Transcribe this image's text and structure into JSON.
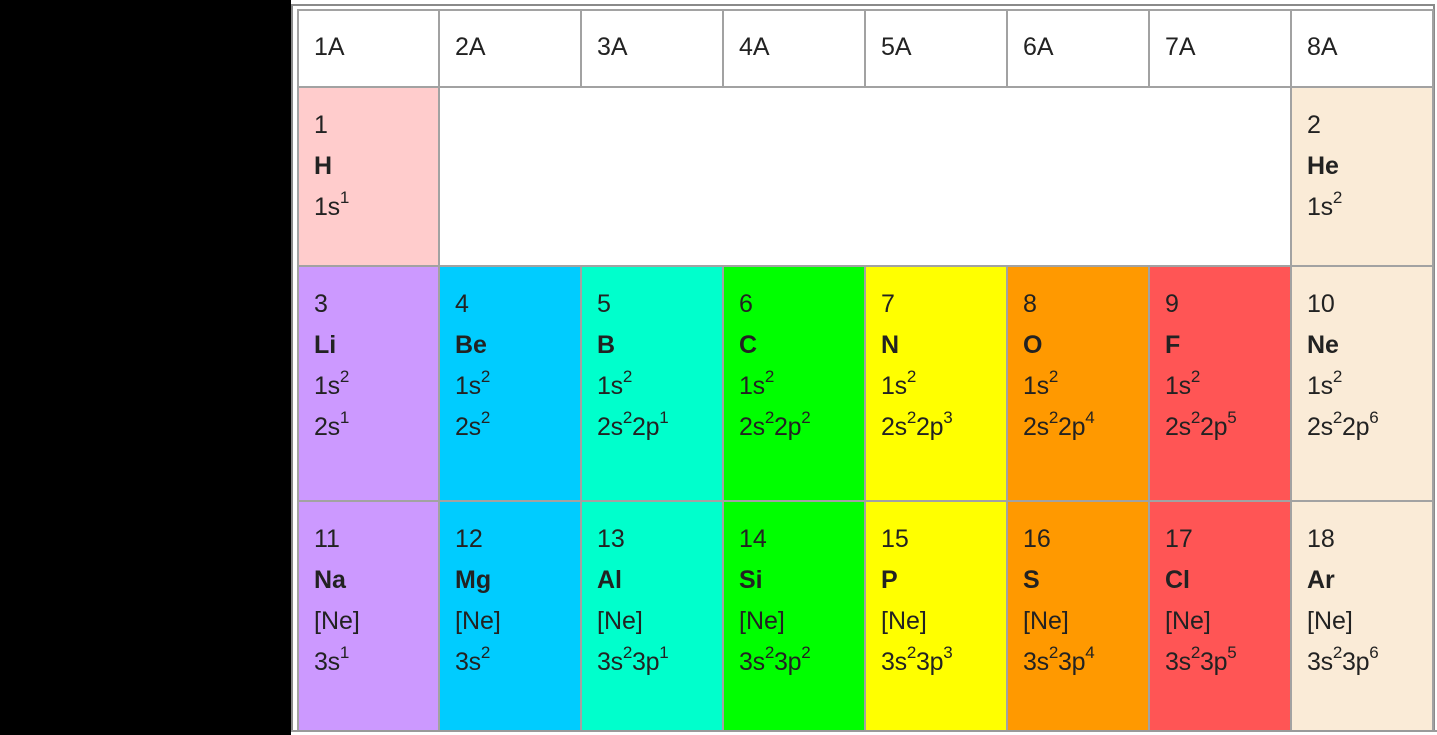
{
  "table": {
    "headers": [
      "1A",
      "2A",
      "3A",
      "4A",
      "5A",
      "6A",
      "7A",
      "8A"
    ],
    "colors": {
      "hydrogen": "#ffcccc",
      "noble": "#faebd7",
      "group1": "#cc99ff",
      "group2": "#00ccff",
      "group3": "#00ffcc",
      "group4": "#00ff00",
      "group5": "#ffff00",
      "group6": "#ff9900",
      "group7": "#ff5555",
      "empty": "#ffffff"
    },
    "period1": [
      {
        "number": "1",
        "symbol": "H",
        "config": [
          {
            "base": "1s",
            "sup": "1"
          }
        ]
      },
      {
        "number": "2",
        "symbol": "He",
        "config": [
          {
            "base": "1s",
            "sup": "2"
          }
        ]
      }
    ],
    "period2": [
      {
        "number": "3",
        "symbol": "Li",
        "line1": [
          {
            "base": "1s",
            "sup": "2"
          }
        ],
        "line2": [
          {
            "base": "2s",
            "sup": "1"
          }
        ]
      },
      {
        "number": "4",
        "symbol": "Be",
        "line1": [
          {
            "base": "1s",
            "sup": "2"
          }
        ],
        "line2": [
          {
            "base": "2s",
            "sup": "2"
          }
        ]
      },
      {
        "number": "5",
        "symbol": "B",
        "line1": [
          {
            "base": "1s",
            "sup": "2"
          }
        ],
        "line2": [
          {
            "base": "2s",
            "sup": "2"
          },
          {
            "base": "2p",
            "sup": "1"
          }
        ]
      },
      {
        "number": "6",
        "symbol": "C",
        "line1": [
          {
            "base": "1s",
            "sup": "2"
          }
        ],
        "line2": [
          {
            "base": "2s",
            "sup": "2"
          },
          {
            "base": "2p",
            "sup": "2"
          }
        ]
      },
      {
        "number": "7",
        "symbol": "N",
        "line1": [
          {
            "base": "1s",
            "sup": "2"
          }
        ],
        "line2": [
          {
            "base": "2s",
            "sup": "2"
          },
          {
            "base": "2p",
            "sup": "3"
          }
        ]
      },
      {
        "number": "8",
        "symbol": "O",
        "line1": [
          {
            "base": "1s",
            "sup": "2"
          }
        ],
        "line2": [
          {
            "base": "2s",
            "sup": "2"
          },
          {
            "base": "2p",
            "sup": "4"
          }
        ]
      },
      {
        "number": "9",
        "symbol": "F",
        "line1": [
          {
            "base": "1s",
            "sup": "2"
          }
        ],
        "line2": [
          {
            "base": "2s",
            "sup": "2"
          },
          {
            "base": "2p",
            "sup": "5"
          }
        ]
      },
      {
        "number": "10",
        "symbol": "Ne",
        "line1": [
          {
            "base": "1s",
            "sup": "2"
          }
        ],
        "line2": [
          {
            "base": "2s",
            "sup": "2"
          },
          {
            "base": "2p",
            "sup": "6"
          }
        ]
      }
    ],
    "period3": [
      {
        "number": "11",
        "symbol": "Na",
        "core": "[Ne]",
        "line2": [
          {
            "base": "3s",
            "sup": "1"
          }
        ]
      },
      {
        "number": "12",
        "symbol": "Mg",
        "core": "[Ne]",
        "line2": [
          {
            "base": "3s",
            "sup": "2"
          }
        ]
      },
      {
        "number": "13",
        "symbol": "Al",
        "core": "[Ne]",
        "line2": [
          {
            "base": "3s",
            "sup": "2"
          },
          {
            "base": "3p",
            "sup": "1"
          }
        ]
      },
      {
        "number": "14",
        "symbol": "Si",
        "core": "[Ne]",
        "line2": [
          {
            "base": "3s",
            "sup": "2"
          },
          {
            "base": "3p",
            "sup": "2"
          }
        ]
      },
      {
        "number": "15",
        "symbol": "P",
        "core": "[Ne]",
        "line2": [
          {
            "base": "3s",
            "sup": "2"
          },
          {
            "base": "3p",
            "sup": "3"
          }
        ]
      },
      {
        "number": "16",
        "symbol": "S",
        "core": "[Ne]",
        "line2": [
          {
            "base": "3s",
            "sup": "2"
          },
          {
            "base": "3p",
            "sup": "4"
          }
        ]
      },
      {
        "number": "17",
        "symbol": "Cl",
        "core": "[Ne]",
        "line2": [
          {
            "base": "3s",
            "sup": "2"
          },
          {
            "base": "3p",
            "sup": "5"
          }
        ]
      },
      {
        "number": "18",
        "symbol": "Ar",
        "core": "[Ne]",
        "line2": [
          {
            "base": "3s",
            "sup": "2"
          },
          {
            "base": "3p",
            "sup": "6"
          }
        ]
      }
    ]
  }
}
